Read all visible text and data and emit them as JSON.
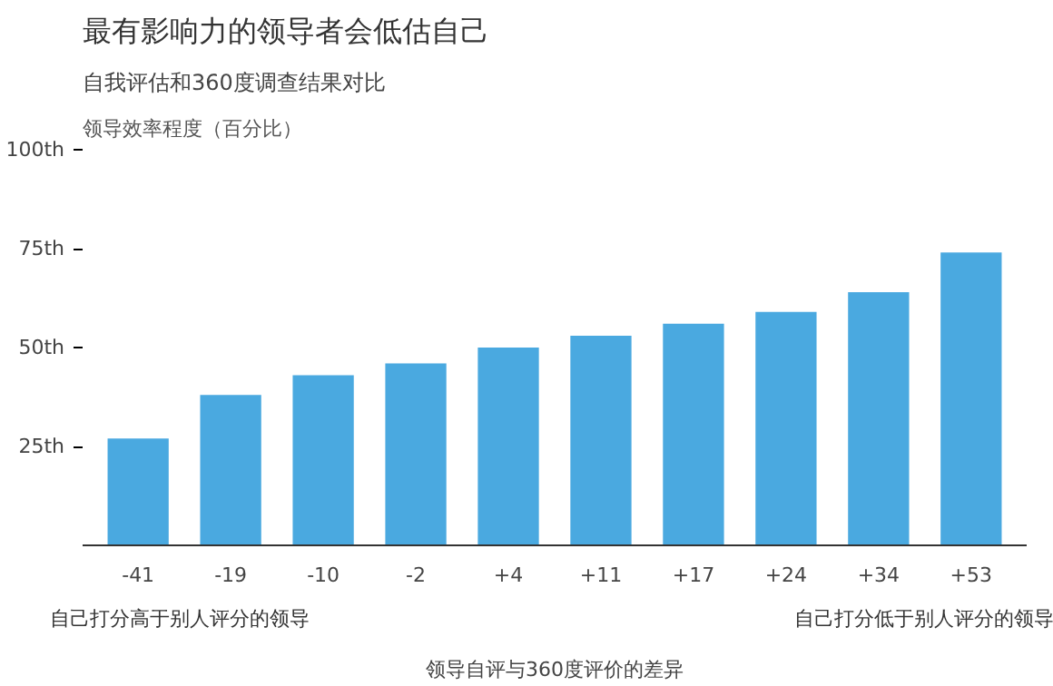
{
  "chart_data": {
    "type": "bar",
    "title": "最有影响力的领导者会低估自己",
    "subtitle": "自我评估和360度调查结果对比",
    "ylabel": "领导效率程度（百分比）",
    "xlabel": "领导自评与360度评价的差异",
    "categories": [
      "-41",
      "-19",
      "-10",
      "-2",
      "+4",
      "+11",
      "+17",
      "+24",
      "+34",
      "+53"
    ],
    "values": [
      27,
      38,
      43,
      46,
      50,
      53,
      56,
      59,
      64,
      74
    ],
    "color": "#4aa9e0",
    "ylim": [
      0,
      100
    ],
    "yticks": [
      {
        "value": 25,
        "label": "25th"
      },
      {
        "value": 50,
        "label": "50th"
      },
      {
        "value": 75,
        "label": "75th"
      },
      {
        "value": 100,
        "label": "100th"
      }
    ],
    "grid": false,
    "annotations": [
      "自己打分高于别人评分的领导",
      "自己打分低于别人评分的领导"
    ]
  }
}
